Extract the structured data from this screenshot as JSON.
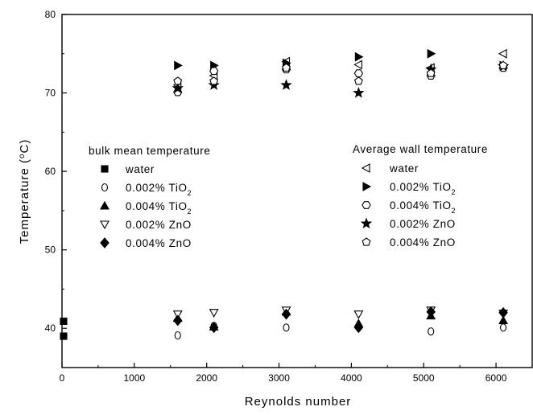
{
  "chart_data": {
    "type": "scatter",
    "xlabel": "Reynolds number",
    "ylabel": "Temperature (°C)",
    "ylabel_main": "Temperature (",
    "ylabel_unit_sup": "o",
    "ylabel_unit": "C)",
    "xlim": [
      0,
      6500
    ],
    "ylim": [
      35,
      80
    ],
    "xticks": [
      0,
      1000,
      2000,
      3000,
      4000,
      5000,
      6000
    ],
    "yticks": [
      40,
      50,
      60,
      70,
      80
    ],
    "grid": false,
    "legend_groups": [
      {
        "title": "bulk mean temperature",
        "position": "middle-left"
      },
      {
        "title": "Average wall temperature",
        "position": "middle-right"
      }
    ],
    "series": [
      {
        "name": "water",
        "group": 0,
        "marker": "square",
        "filled": true,
        "x": [
          0,
          0
        ],
        "y": [
          39,
          40.9
        ]
      },
      {
        "name": "0.002% TiO",
        "sub": "2",
        "group": 0,
        "marker": "circle",
        "filled": false,
        "x": [
          1600,
          2100,
          3100,
          4100,
          5100,
          6100
        ],
        "y": [
          39.1,
          40.3,
          40.1,
          40.2,
          39.6,
          40.1
        ]
      },
      {
        "name": "0.004% TiO",
        "sub": "2",
        "group": 0,
        "marker": "triangle-up",
        "filled": true,
        "x": [
          1600,
          2100,
          3100,
          4100,
          5100,
          6100
        ],
        "y": [
          41.3,
          40.2,
          42.1,
          40.6,
          41.6,
          41.0
        ]
      },
      {
        "name": "0.002% ZnO",
        "group": 0,
        "marker": "triangle-down",
        "filled": false,
        "x": [
          1600,
          2100,
          3100,
          4100,
          5100,
          6100
        ],
        "y": [
          41.8,
          42.0,
          42.3,
          41.8,
          42.3,
          41.9
        ]
      },
      {
        "name": "0.004% ZnO",
        "group": 0,
        "marker": "diamond",
        "filled": true,
        "x": [
          1600,
          2100,
          3100,
          4100,
          5100,
          6100
        ],
        "y": [
          41.0,
          40.1,
          41.8,
          40.1,
          42.1,
          42.0
        ]
      },
      {
        "name": "water",
        "group": 1,
        "marker": "triangle-left",
        "filled": false,
        "x": [
          1600,
          2100,
          3100,
          4100,
          5100,
          6100
        ],
        "y": [
          71.0,
          72.2,
          74.0,
          73.6,
          73.2,
          75.0
        ]
      },
      {
        "name": "0.002% TiO",
        "sub": "2",
        "group": 1,
        "marker": "triangle-right",
        "filled": true,
        "x": [
          1600,
          2100,
          3100,
          4100,
          5100,
          6100
        ],
        "y": [
          73.5,
          73.5,
          73.8,
          74.6,
          75.0,
          73.5
        ]
      },
      {
        "name": "0.004% TiO",
        "sub": "2",
        "group": 1,
        "marker": "hexagon",
        "filled": false,
        "x": [
          1600,
          2100,
          3100,
          4100,
          5100,
          6100
        ],
        "y": [
          70.1,
          72.8,
          73.0,
          72.5,
          72.2,
          73.2
        ]
      },
      {
        "name": "0.002% ZnO",
        "group": 1,
        "marker": "star",
        "filled": true,
        "x": [
          1600,
          2100,
          3100,
          4100,
          5100,
          6100
        ],
        "y": [
          70.6,
          71.0,
          71.0,
          70.0,
          73.0,
          73.4
        ]
      },
      {
        "name": "0.004% ZnO",
        "group": 1,
        "marker": "pentagon",
        "filled": false,
        "x": [
          1600,
          2100,
          3100,
          4100,
          5100,
          6100
        ],
        "y": [
          71.5,
          71.5,
          73.2,
          71.5,
          72.5,
          73.5
        ]
      }
    ]
  }
}
